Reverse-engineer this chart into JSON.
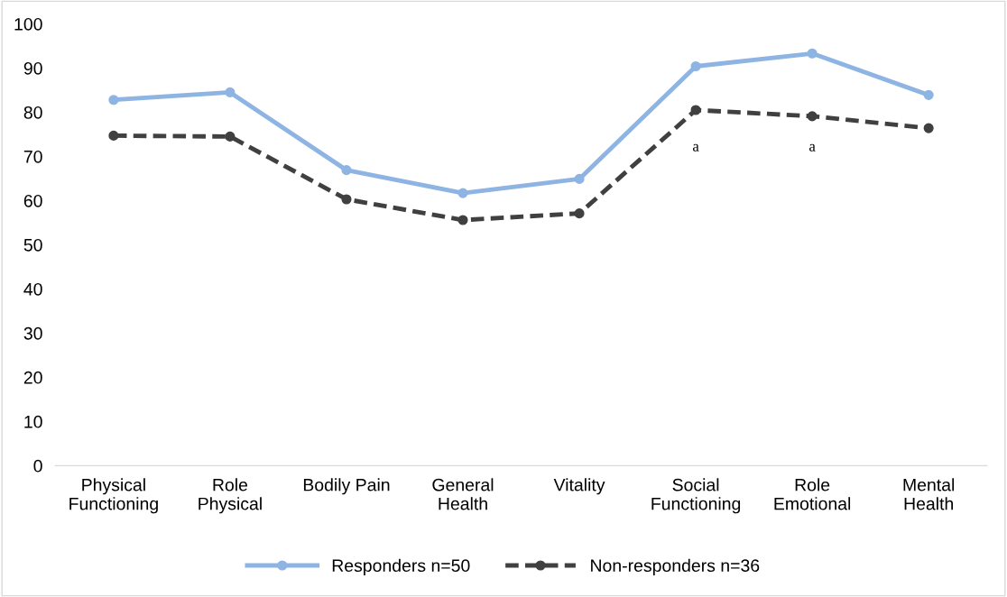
{
  "chart_data": {
    "type": "line",
    "categories": [
      "Physical\nFunctioning",
      "Role\nPhysical",
      "Bodily Pain",
      "General\nHealth",
      "Vitality",
      "Social\nFunctioning",
      "Role\nEmotional",
      "Mental\nHealth"
    ],
    "series": [
      {
        "name": "Responders n=50",
        "color": "#8db4e2",
        "marker": "circle",
        "line_style": "solid",
        "values": [
          82.8,
          84.5,
          66.9,
          61.7,
          64.9,
          90.4,
          93.3,
          83.9
        ]
      },
      {
        "name": "Non-responders n=36",
        "color": "#404040",
        "marker": "circle",
        "line_style": "dashed",
        "values": [
          74.7,
          74.5,
          60.3,
          55.6,
          57.1,
          80.5,
          79.1,
          76.4
        ]
      }
    ],
    "annotations": [
      "a",
      "a"
    ],
    "ylim": [
      0,
      100
    ],
    "yticks": [
      0,
      10,
      20,
      30,
      40,
      50,
      60,
      70,
      80,
      90,
      100
    ],
    "grid": false,
    "legend": "bottom"
  }
}
